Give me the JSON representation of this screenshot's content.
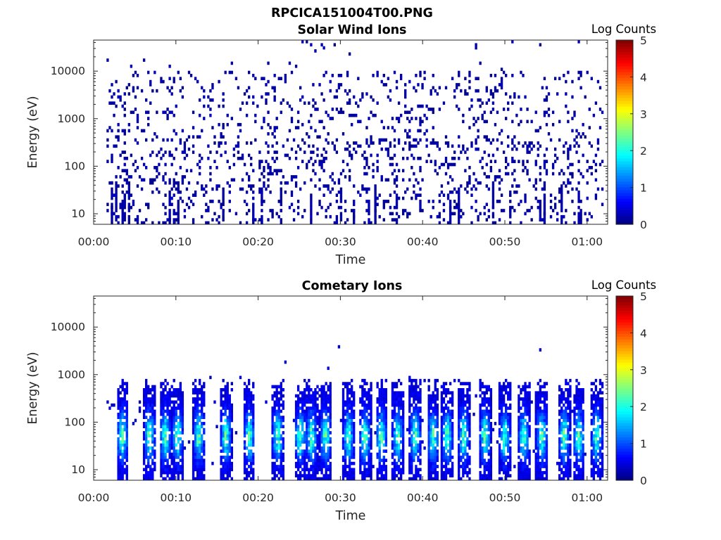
{
  "figure_title": "RPCICA151004T00.PNG",
  "chart_data": [
    {
      "type": "heatmap",
      "title": "Solar Wind Ions",
      "xlabel": "Time",
      "ylabel": "Energy (eV)",
      "x_tick_labels": [
        "00:00",
        "00:10",
        "00:20",
        "00:30",
        "00:40",
        "00:50",
        "01:00"
      ],
      "x_tick_values_min": [
        0,
        10,
        20,
        30,
        40,
        50,
        60
      ],
      "xlim_min": [
        0,
        62.5
      ],
      "y_scale": "log",
      "y_tick_labels": [
        "10",
        "100",
        "1000",
        "10000"
      ],
      "y_tick_values": [
        10,
        100,
        1000,
        10000
      ],
      "ylim": [
        6,
        45000
      ],
      "colorbar": {
        "label": "Log Counts",
        "range": [
          0,
          5
        ],
        "tick_labels": [
          "0",
          "1",
          "2",
          "3",
          "4",
          "5"
        ],
        "colormap": "jet"
      },
      "pattern": "sparse",
      "seed": 7,
      "description_values": {
        "dominant_log_counts": 0.05,
        "activity_energy_range_eV": [
          6,
          30000
        ]
      }
    },
    {
      "type": "heatmap",
      "title": "Cometary Ions",
      "xlabel": "Time",
      "ylabel": "Energy (eV)",
      "x_tick_labels": [
        "00:00",
        "00:10",
        "00:20",
        "00:30",
        "00:40",
        "00:50",
        "01:00"
      ],
      "x_tick_values_min": [
        0,
        10,
        20,
        30,
        40,
        50,
        60
      ],
      "xlim_min": [
        0,
        62.5
      ],
      "y_scale": "log",
      "y_tick_labels": [
        "10",
        "100",
        "1000",
        "10000"
      ],
      "y_tick_values": [
        10,
        100,
        1000,
        10000
      ],
      "ylim": [
        6,
        45000
      ],
      "colorbar": {
        "label": "Log Counts",
        "range": [
          0,
          5
        ],
        "tick_labels": [
          "0",
          "1",
          "2",
          "3",
          "4",
          "5"
        ],
        "colormap": "jet"
      },
      "pattern": "bursts",
      "seed": 13,
      "burst_centers_min": [
        3.5,
        6.8,
        8.7,
        10.2,
        12.8,
        16.1,
        18.9,
        22.4,
        25.1,
        26.5,
        28.2,
        31.0,
        33.0,
        35.0,
        37.0,
        39.1,
        41.3,
        43.0,
        45.0,
        47.6,
        50.0,
        52.3,
        54.5,
        57.2,
        59.0,
        61.2
      ],
      "burst_energy_range_eV": [
        6,
        800
      ],
      "burst_peak_log_counts": 2.2
    }
  ]
}
